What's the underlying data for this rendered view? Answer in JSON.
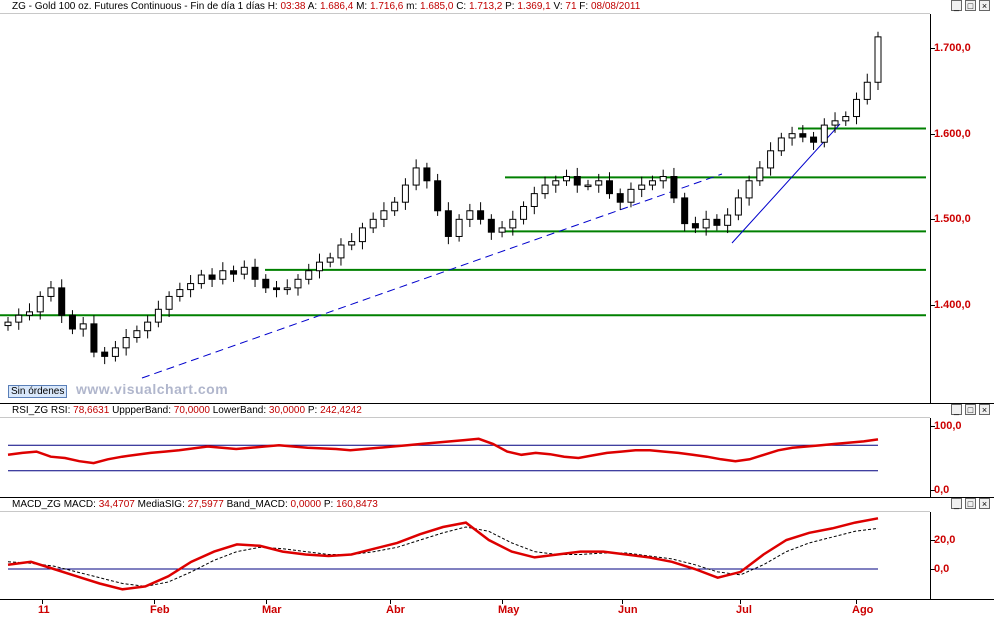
{
  "main": {
    "symbol": "ZG - Gold 100 oz. Futures Continuous - Fin de día 1 días",
    "stats": [
      {
        "k": "H:",
        "v": "03:38"
      },
      {
        "k": "A:",
        "v": "1.686,4"
      },
      {
        "k": "M:",
        "v": "1.716,6"
      },
      {
        "k": "m:",
        "v": "1.685,0"
      },
      {
        "k": "C:",
        "v": "1.713,2"
      },
      {
        "k": "P:",
        "v": "1.369,1"
      },
      {
        "k": "V:",
        "v": "71"
      },
      {
        "k": "F:",
        "v": "08/08/2011"
      }
    ],
    "yaxis": [
      "1.700,0",
      "1.600,0",
      "1.500,0",
      "1.400,0"
    ],
    "badge": "Sin órdenes",
    "watermark": "www.visualchart.com"
  },
  "rsi": {
    "title": "RSI_ZG",
    "stats": [
      {
        "k": "RSI:",
        "v": "78,6631"
      },
      {
        "k": "UppperBand:",
        "v": "70,0000"
      },
      {
        "k": "LowerBand:",
        "v": "30,0000"
      },
      {
        "k": "P:",
        "v": "242,4242"
      }
    ],
    "yaxis": [
      "100,0",
      "0,0"
    ]
  },
  "macd": {
    "title": "MACD_ZG",
    "stats": [
      {
        "k": "MACD:",
        "v": "34,4707"
      },
      {
        "k": "MediaSIG:",
        "v": "27,5977"
      },
      {
        "k": "Band_MACD:",
        "v": "0,0000"
      },
      {
        "k": "P:",
        "v": "160,8473"
      }
    ],
    "yaxis": [
      "20,0",
      "0,0"
    ]
  },
  "xaxis": [
    "11",
    "Feb",
    "Mar",
    "Abr",
    "May",
    "Jun",
    "Jul",
    "Ago"
  ],
  "window_buttons": [
    "_",
    "□",
    "×"
  ],
  "colors": {
    "price_axis": "#cc0000",
    "support_lines": "#008000",
    "trend_lines": "#0000cc",
    "indicator": "#dd0000"
  },
  "chart_data": [
    {
      "type": "candlestick",
      "title": "ZG - Gold 100 oz. Futures Continuous",
      "x_labels": [
        "11",
        "Feb",
        "Mar",
        "Abr",
        "May",
        "Jun",
        "Jul",
        "Ago"
      ],
      "ylim": [
        1300,
        1730
      ],
      "horizontal_levels": [
        1606,
        1549,
        1486,
        1441,
        1388
      ],
      "approx_closes": [
        1380,
        1388,
        1392,
        1410,
        1420,
        1388,
        1372,
        1378,
        1345,
        1340,
        1350,
        1362,
        1370,
        1380,
        1395,
        1410,
        1418,
        1425,
        1435,
        1430,
        1440,
        1436,
        1444,
        1430,
        1420,
        1418,
        1420,
        1430,
        1440,
        1450,
        1455,
        1470,
        1474,
        1490,
        1500,
        1510,
        1520,
        1540,
        1560,
        1545,
        1510,
        1480,
        1500,
        1510,
        1500,
        1485,
        1490,
        1500,
        1515,
        1530,
        1540,
        1545,
        1550,
        1540,
        1540,
        1545,
        1530,
        1520,
        1535,
        1540,
        1545,
        1550,
        1525,
        1495,
        1490,
        1500,
        1493,
        1505,
        1525,
        1545,
        1560,
        1580,
        1595,
        1600,
        1596,
        1590,
        1610,
        1615,
        1620,
        1640,
        1660,
        1713
      ]
    },
    {
      "type": "line",
      "title": "RSI_ZG",
      "ylim": [
        0,
        100
      ],
      "bands": [
        70,
        30
      ],
      "series": [
        {
          "name": "RSI",
          "values": [
            55,
            58,
            60,
            52,
            50,
            45,
            42,
            48,
            52,
            55,
            58,
            60,
            62,
            65,
            68,
            66,
            64,
            66,
            68,
            70,
            68,
            66,
            65,
            64,
            62,
            64,
            66,
            68,
            70,
            72,
            74,
            76,
            78,
            80,
            72,
            60,
            55,
            58,
            56,
            52,
            50,
            54,
            58,
            60,
            62,
            62,
            60,
            58,
            55,
            52,
            48,
            45,
            48,
            55,
            62,
            66,
            68,
            70,
            72,
            74,
            76,
            79
          ]
        }
      ]
    },
    {
      "type": "line",
      "title": "MACD_ZG",
      "ylim": [
        -20,
        40
      ],
      "series": [
        {
          "name": "MACD",
          "values": [
            3,
            5,
            0,
            -5,
            -10,
            -14,
            -12,
            -5,
            5,
            12,
            17,
            16,
            12,
            10,
            9,
            10,
            14,
            18,
            24,
            29,
            32,
            20,
            12,
            8,
            10,
            12,
            12,
            10,
            8,
            5,
            0,
            -6,
            -2,
            10,
            20,
            25,
            28,
            32,
            35
          ]
        },
        {
          "name": "MediaSIG",
          "values": [
            5,
            4,
            2,
            -2,
            -6,
            -10,
            -12,
            -9,
            -2,
            6,
            12,
            15,
            14,
            12,
            10,
            10,
            12,
            15,
            20,
            25,
            29,
            26,
            18,
            12,
            10,
            10,
            11,
            11,
            9,
            7,
            3,
            -2,
            -4,
            3,
            12,
            18,
            22,
            26,
            28
          ]
        }
      ]
    }
  ]
}
